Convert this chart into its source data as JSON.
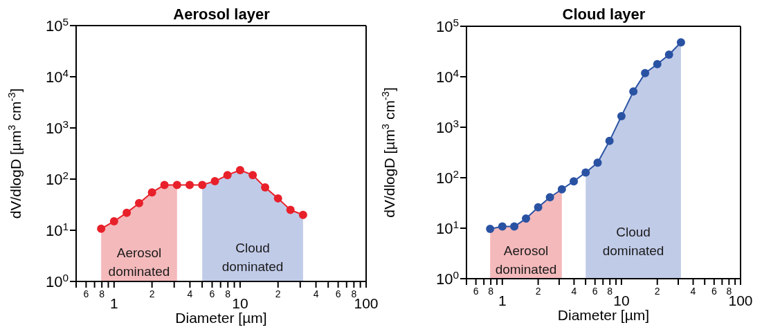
{
  "chart_data": [
    {
      "type": "line",
      "title": "Aerosol layer",
      "xlabel": "Diameter [µm]",
      "ylabel": "dV/dlogD [µm$^{3}$ cm$^{-3}$]",
      "log": "xy",
      "grid": false,
      "legend": false,
      "marker": "circle",
      "line_style": "solid",
      "x": [
        0.79,
        1.0,
        1.26,
        1.58,
        2.0,
        2.51,
        3.16,
        3.98,
        5.01,
        6.31,
        7.94,
        10,
        12.6,
        15.8,
        20,
        25.1,
        31.6
      ],
      "xlim": [
        0.5,
        100
      ],
      "xticks": [
        {
          "value": 0.5,
          "label": null
        },
        {
          "value": 0.6,
          "label": null
        },
        {
          "value": 0.7,
          "label": null
        },
        {
          "value": 0.8,
          "label": null
        },
        {
          "value": 0.9,
          "label": null
        },
        1,
        {
          "value": 2,
          "label": null
        },
        {
          "value": 3,
          "label": null
        },
        {
          "value": 4,
          "label": null
        },
        {
          "value": 5,
          "label": null
        },
        {
          "value": 6,
          "label": null
        },
        {
          "value": 7,
          "label": null
        },
        {
          "value": 8,
          "label": null
        },
        {
          "value": 9,
          "label": null
        },
        10,
        {
          "value": 20,
          "label": null
        },
        {
          "value": 30,
          "label": null
        },
        {
          "value": 40,
          "label": null
        },
        {
          "value": 50,
          "label": null
        },
        {
          "value": 60,
          "label": null
        },
        {
          "value": 70,
          "label": null
        },
        {
          "value": 80,
          "label": null
        },
        {
          "value": 90,
          "label": null
        },
        100
      ],
      "annotations": [
        "6",
        "8",
        "2",
        "4",
        "6",
        "8",
        "2",
        "4",
        "6",
        "8"
      ],
      "ylim": [
        1,
        100000
      ],
      "yticks": [
        {
          "value": 1,
          "label": "10$^{0}$"
        },
        {
          "value": 10,
          "label": "10$^{1}$"
        },
        {
          "value": 100,
          "label": "10$^{2}$"
        },
        {
          "value": 1000,
          "label": "10$^{3}$"
        },
        {
          "value": 10000,
          "label": "10$^{4}$"
        },
        {
          "value": 100000,
          "label": "10$^{5}$"
        }
      ],
      "series": [
        {
          "type": "area",
          "name": "Aerosol dominated",
          "color": "#f4b9bb",
          "marker": "none",
          "values": [
            10.7,
            15,
            22,
            34,
            55,
            77,
            77,
            null,
            null,
            null,
            null,
            null,
            null,
            null,
            null,
            null,
            null
          ]
        },
        {
          "type": "area",
          "name": "Cloud dominated",
          "color": "#c0cbe8",
          "marker": "none",
          "values": [
            null,
            null,
            null,
            null,
            null,
            null,
            null,
            null,
            77,
            91,
            120,
            150,
            120,
            69,
            42,
            25,
            20
          ]
        },
        {
          "type": "line",
          "color": "#e8202a",
          "values": [
            10.7,
            15,
            22,
            34,
            55,
            77,
            77,
            77,
            77,
            91,
            120,
            150,
            120,
            69,
            42,
            25,
            20
          ]
        }
      ]
    },
    {
      "type": "line",
      "title": "Cloud layer",
      "xlabel": "Diameter [µm]",
      "ylabel": "dV/dlogD [µm$^{3}$ cm$^{-3}$]",
      "log": "xy",
      "grid": false,
      "legend": false,
      "marker": "circle",
      "line_style": "solid",
      "x": [
        0.79,
        1.0,
        1.26,
        1.58,
        2.0,
        2.51,
        3.16,
        3.98,
        5.01,
        6.31,
        7.94,
        10,
        12.6,
        15.8,
        20,
        25.1,
        31.6
      ],
      "xlim": [
        0.5,
        100
      ],
      "xticks": [
        {
          "value": 0.5,
          "label": null
        },
        {
          "value": 0.6,
          "label": null
        },
        {
          "value": 0.7,
          "label": null
        },
        {
          "value": 0.8,
          "label": null
        },
        {
          "value": 0.9,
          "label": null
        },
        1,
        {
          "value": 2,
          "label": null
        },
        {
          "value": 3,
          "label": null
        },
        {
          "value": 4,
          "label": null
        },
        {
          "value": 5,
          "label": null
        },
        {
          "value": 6,
          "label": null
        },
        {
          "value": 7,
          "label": null
        },
        {
          "value": 8,
          "label": null
        },
        {
          "value": 9,
          "label": null
        },
        10,
        {
          "value": 20,
          "label": null
        },
        {
          "value": 30,
          "label": null
        },
        {
          "value": 40,
          "label": null
        },
        {
          "value": 50,
          "label": null
        },
        {
          "value": 60,
          "label": null
        },
        {
          "value": 70,
          "label": null
        },
        {
          "value": 80,
          "label": null
        },
        {
          "value": 90,
          "label": null
        },
        100
      ],
      "annotations": [
        "6",
        "8",
        "2",
        "4",
        "6",
        "8",
        "2",
        "4",
        "6",
        "8"
      ],
      "ylim": [
        1,
        100000
      ],
      "yticks": [
        {
          "value": 1,
          "label": "10$^{0}$"
        },
        {
          "value": 10,
          "label": "10$^{1}$"
        },
        {
          "value": 100,
          "label": "10$^{2}$"
        },
        {
          "value": 1000,
          "label": "10$^{3}$"
        },
        {
          "value": 10000,
          "label": "10$^{4}$"
        },
        {
          "value": 100000,
          "label": "10$^{5}$"
        }
      ],
      "series": [
        {
          "type": "area",
          "name": "Aerosol dominated",
          "color": "#f4b9bb",
          "marker": "none",
          "values": [
            9.7,
            10.8,
            10.8,
            15.5,
            26,
            41,
            59,
            null,
            null,
            null,
            null,
            null,
            null,
            null,
            null,
            null,
            null
          ]
        },
        {
          "type": "area",
          "name": "Cloud dominated",
          "color": "#c0cbe8",
          "marker": "none",
          "values": [
            null,
            null,
            null,
            null,
            null,
            null,
            null,
            null,
            127,
            198,
            535,
            1660,
            5100,
            11800,
            17800,
            27500,
            48000
          ]
        },
        {
          "type": "line",
          "color": "#2a52a3",
          "values": [
            9.7,
            10.8,
            10.8,
            15.5,
            26,
            41,
            59,
            85,
            127,
            198,
            535,
            1660,
            5100,
            11800,
            17800,
            27500,
            48000
          ]
        }
      ]
    }
  ]
}
